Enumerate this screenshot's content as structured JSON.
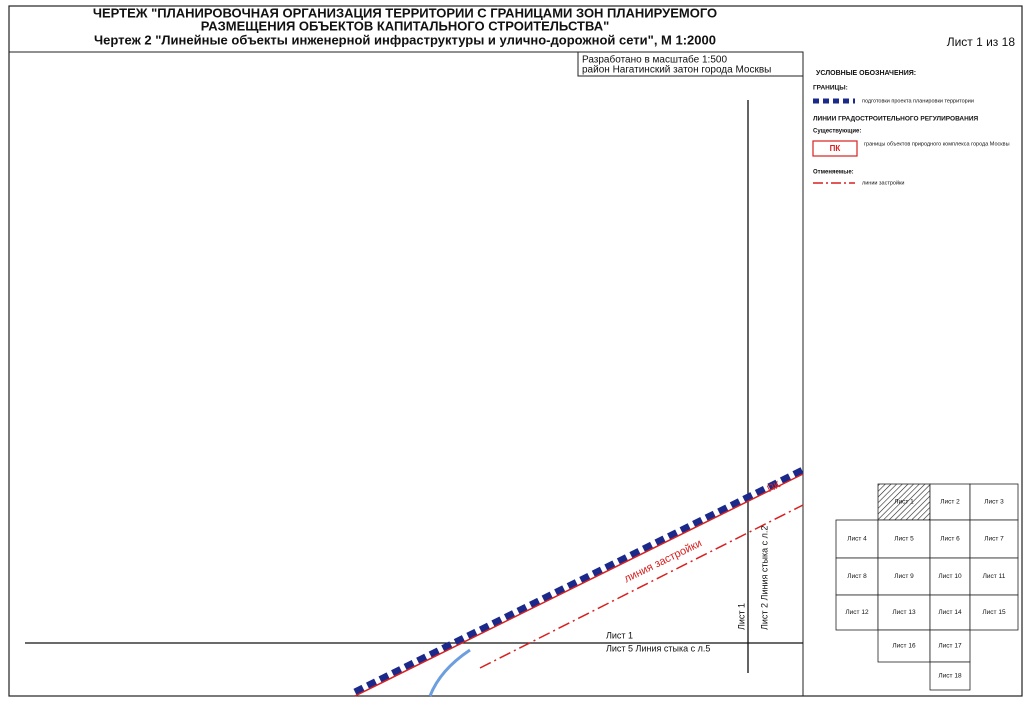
{
  "header": {
    "title_lines": [
      "ЧЕРТЕЖ \"ПЛАНИРОВОЧНАЯ ОРГАНИЗАЦИЯ ТЕРРИТОРИИ С ГРАНИЦАМИ ЗОН ПЛАНИРУЕМОГО",
      "РАЗМЕЩЕНИЯ ОБЪЕКТОВ КАПИТАЛЬНОГО СТРОИТЕЛЬСТВА\"",
      "Чертеж 2 \"Линейные объекты инженерной инфраструктуры и улично-дорожной сети\", М 1:2000"
    ],
    "sheet": "Лист 1 из 18"
  },
  "stamp": [
    "Разработано в масштабе 1:500",
    "район Нагатинский затон города Москвы"
  ],
  "legend": {
    "title": "УСЛОВНЫЕ ОБОЗНАЧЕНИЯ:",
    "boundaries": "ГРАНИЦЫ:",
    "boundary_item": "подготовки проекта планировки территории",
    "regulation": "ЛИНИИ ГРАДОСТРОИТЕЛЬНОГО РЕГУЛИРОВАНИЯ",
    "existing": "Существующие:",
    "pk_symbol": "ПК",
    "pk_item": "границы объектов природного комплекса города Москвы",
    "cancelled": "Отменяемые:",
    "building_line": "линии застройки"
  },
  "map": {
    "pk_label": "ПК",
    "building_line_label": "линия застройки",
    "bottom_join": [
      "Лист 1",
      "Лист 5 Линия стыка с л.5"
    ],
    "right_join": [
      "Лист 1",
      "Лист 2 Линия стыка с л.2"
    ]
  },
  "index": {
    "sheets": [
      "Лист 1",
      "Лист 2",
      "Лист 3",
      "Лист 4",
      "Лист 5",
      "Лист 6",
      "Лист 7",
      "Лист 8",
      "Лист 9",
      "Лист 10",
      "Лист 11",
      "Лист 12",
      "Лист 13",
      "Лист 14",
      "Лист 15",
      "Лист 16",
      "Лист 17",
      "Лист 18"
    ]
  }
}
